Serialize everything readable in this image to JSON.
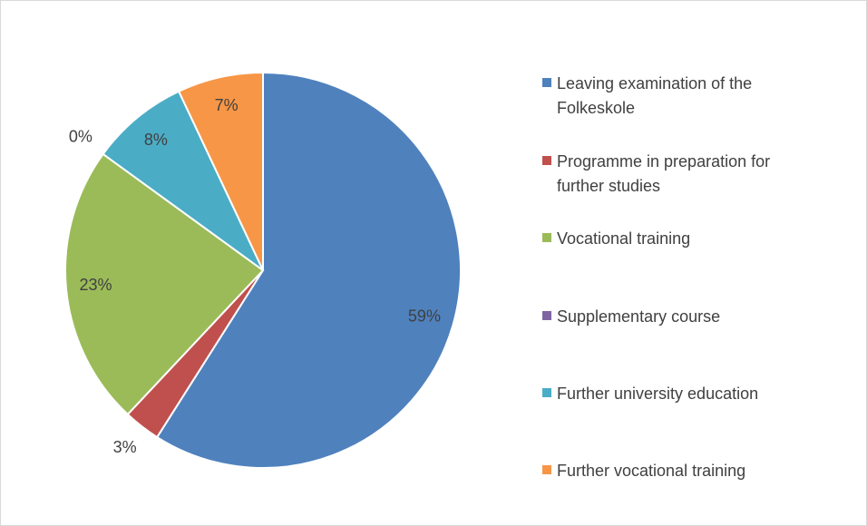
{
  "chart_data": {
    "type": "pie",
    "categories": [
      "Leaving examination of the Folkeskole",
      "Programme in preparation for further studies",
      "Vocational training",
      "Supplementary course",
      "Further university education",
      "Further vocational training"
    ],
    "values": [
      59,
      3,
      23,
      0,
      8,
      7
    ],
    "value_labels": [
      "59%",
      "3%",
      "23%",
      "0%",
      "8%",
      "7%"
    ],
    "colors": [
      "#4f81bd",
      "#c0504d",
      "#9bbb59",
      "#8064a2",
      "#4bacc6",
      "#f79646"
    ],
    "legend": "right"
  }
}
